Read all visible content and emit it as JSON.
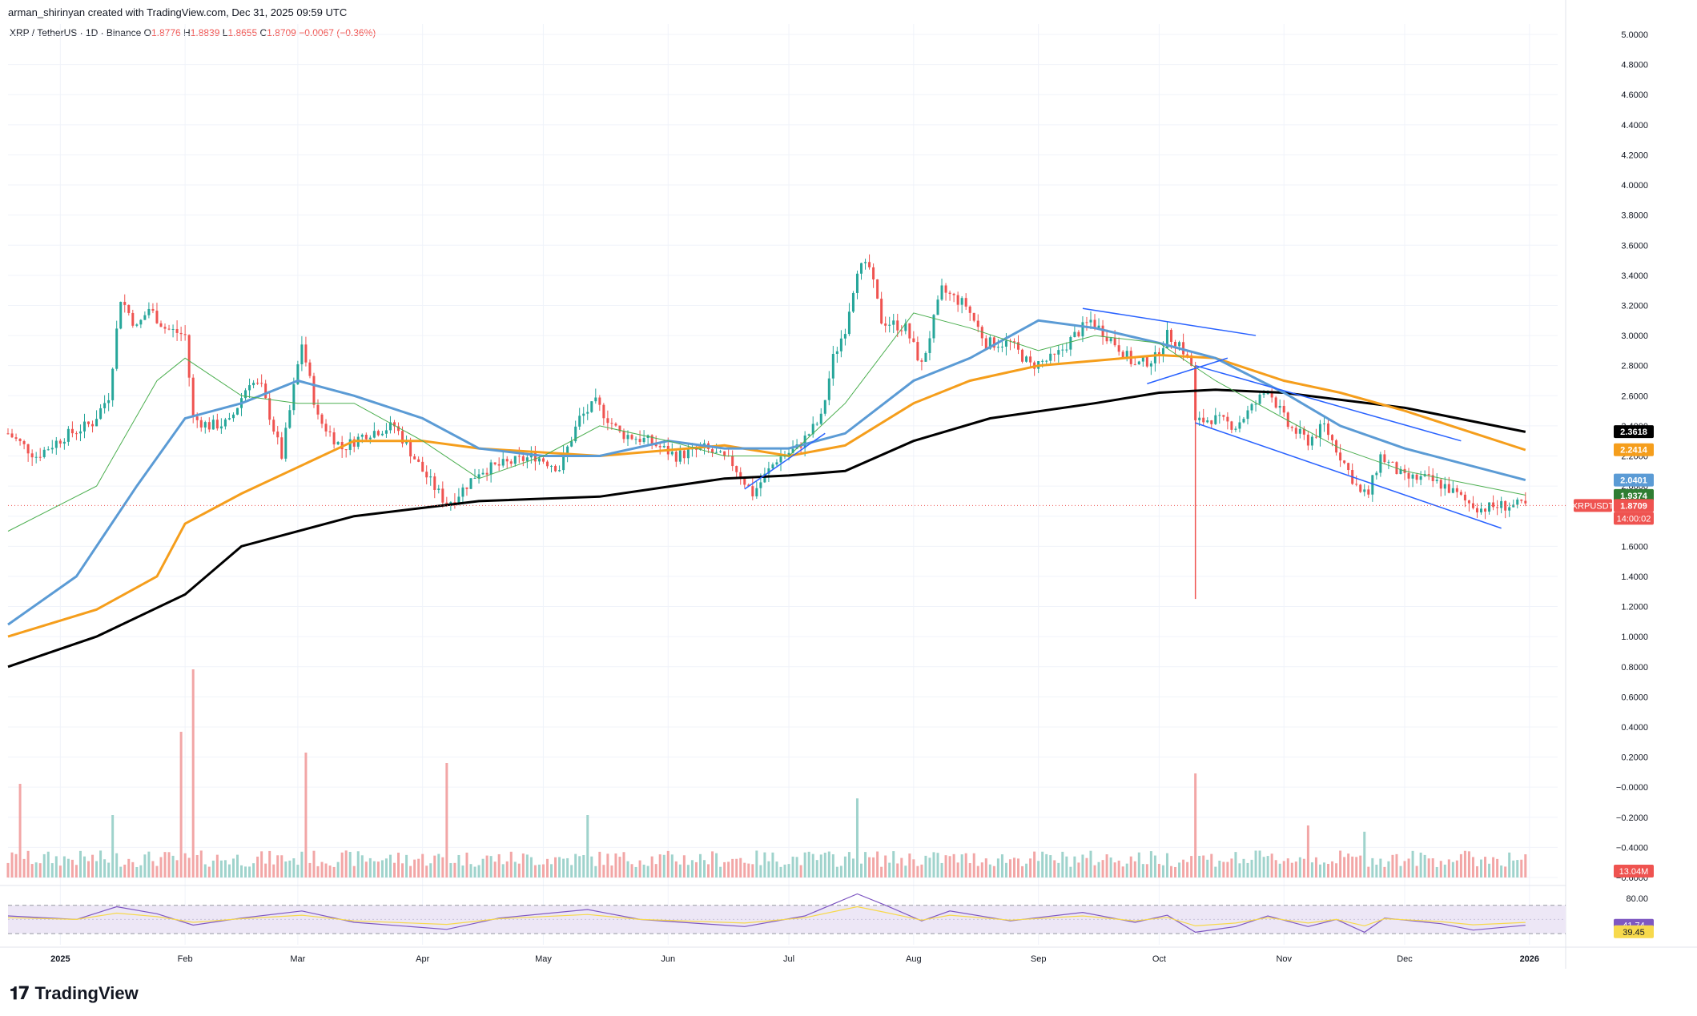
{
  "header": {
    "creator": "arman_shirinyan created with TradingView.com, Dec 31, 2025 09:59 UTC",
    "symbol": "XRP / TetherUS · 1D · Binance",
    "o_label": "O",
    "o_value": "1.8776",
    "h_label": "H",
    "h_value": "1.8839",
    "l_label": "L",
    "l_value": "1.8655",
    "c_label": "C",
    "c_value": "1.8709",
    "change": "−0.0067 (−0.36%)"
  },
  "brand": {
    "name": "TradingView",
    "logo_icon": "tradingview-logo-icon"
  },
  "colors": {
    "up": "#26a69a",
    "down": "#ef5350",
    "ma_black": "#000000",
    "ma_orange": "#f59e1c",
    "ma_blue": "#5b9bd5",
    "ma_green": "#4caf50",
    "channel": "#2962ff",
    "rsi": "#7e57c2",
    "rsi_ma": "#f7d94c",
    "rsi_band": "#ede7f6"
  },
  "chart_data": {
    "type": "candlestick",
    "symbol": "XRPUSDT",
    "price_axis": {
      "ticks": [
        "5.0000",
        "4.8000",
        "4.6000",
        "4.4000",
        "4.2000",
        "4.0000",
        "3.8000",
        "3.6000",
        "3.4000",
        "3.2000",
        "3.0000",
        "2.8000",
        "2.6000",
        "2.4000",
        "2.2000",
        "2.0000",
        "1.8000",
        "1.6000",
        "1.4000",
        "1.2000",
        "1.0000",
        "0.8000",
        "0.6000",
        "0.4000",
        "0.2000",
        "−0.0000",
        "−0.2000",
        "−0.4000",
        "−0.6000"
      ],
      "range": [
        -0.6,
        5.0
      ]
    },
    "time_axis": [
      "2025",
      "Feb",
      "Mar",
      "Apr",
      "May",
      "Jun",
      "Jul",
      "Aug",
      "Sep",
      "Oct",
      "Nov",
      "Dec",
      "2026"
    ],
    "time_range": [
      "2024-12-19",
      "2026-01-08"
    ],
    "last_close": 1.8709,
    "price_line_label": "XRPUSDT",
    "countdown": "14:00:02",
    "price_labels": [
      {
        "text": "2.3618",
        "value": 2.3618,
        "color": "#000000"
      },
      {
        "text": "2.2414",
        "value": 2.2414,
        "color": "#f59e1c"
      },
      {
        "text": "2.0401",
        "value": 2.0401,
        "color": "#5b9bd5"
      },
      {
        "text": "1.9374",
        "value": 1.9374,
        "color": "#2e7d32"
      },
      {
        "text": "1.8709",
        "value": 1.8709,
        "color": "#ef5350"
      }
    ],
    "close_series": [
      [
        "2024-12-19",
        2.35
      ],
      [
        "2024-12-26",
        2.2
      ],
      [
        "2025-01-02",
        2.33
      ],
      [
        "2025-01-09",
        2.42
      ],
      [
        "2025-01-13",
        2.6
      ],
      [
        "2025-01-16",
        3.25
      ],
      [
        "2025-01-20",
        3.05
      ],
      [
        "2025-01-23",
        3.18
      ],
      [
        "2025-01-27",
        3.05
      ],
      [
        "2025-02-01",
        3.0
      ],
      [
        "2025-02-03",
        2.45
      ],
      [
        "2025-02-07",
        2.4
      ],
      [
        "2025-02-12",
        2.42
      ],
      [
        "2025-02-17",
        2.7
      ],
      [
        "2025-02-20",
        2.65
      ],
      [
        "2025-02-25",
        2.2
      ],
      [
        "2025-03-02",
        2.95
      ],
      [
        "2025-03-06",
        2.45
      ],
      [
        "2025-03-12",
        2.25
      ],
      [
        "2025-03-18",
        2.35
      ],
      [
        "2025-03-25",
        2.4
      ],
      [
        "2025-04-01",
        2.1
      ],
      [
        "2025-04-07",
        1.88
      ],
      [
        "2025-04-10",
        1.95
      ],
      [
        "2025-04-15",
        2.1
      ],
      [
        "2025-04-22",
        2.15
      ],
      [
        "2025-04-29",
        2.2
      ],
      [
        "2025-05-05",
        2.12
      ],
      [
        "2025-05-10",
        2.45
      ],
      [
        "2025-05-14",
        2.55
      ],
      [
        "2025-05-20",
        2.35
      ],
      [
        "2025-05-27",
        2.3
      ],
      [
        "2025-06-03",
        2.2
      ],
      [
        "2025-06-10",
        2.25
      ],
      [
        "2025-06-17",
        2.15
      ],
      [
        "2025-06-22",
        1.95
      ],
      [
        "2025-06-28",
        2.18
      ],
      [
        "2025-07-03",
        2.25
      ],
      [
        "2025-07-09",
        2.45
      ],
      [
        "2025-07-12",
        2.85
      ],
      [
        "2025-07-15",
        3.05
      ],
      [
        "2025-07-18",
        3.45
      ],
      [
        "2025-07-21",
        3.45
      ],
      [
        "2025-07-24",
        3.1
      ],
      [
        "2025-07-30",
        3.05
      ],
      [
        "2025-08-03",
        2.8
      ],
      [
        "2025-08-08",
        3.3
      ],
      [
        "2025-08-14",
        3.2
      ],
      [
        "2025-08-19",
        2.95
      ],
      [
        "2025-08-25",
        2.95
      ],
      [
        "2025-08-30",
        2.8
      ],
      [
        "2025-09-05",
        2.85
      ],
      [
        "2025-09-10",
        3.0
      ],
      [
        "2025-09-14",
        3.1
      ],
      [
        "2025-09-20",
        2.95
      ],
      [
        "2025-09-25",
        2.8
      ],
      [
        "2025-09-30",
        2.85
      ],
      [
        "2025-10-03",
        3.0
      ],
      [
        "2025-10-06",
        2.95
      ],
      [
        "2025-10-09",
        2.8
      ],
      [
        "2025-10-10",
        2.42
      ],
      [
        "2025-10-14",
        2.45
      ],
      [
        "2025-10-20",
        2.4
      ],
      [
        "2025-10-25",
        2.55
      ],
      [
        "2025-10-28",
        2.65
      ],
      [
        "2025-11-02",
        2.4
      ],
      [
        "2025-11-07",
        2.3
      ],
      [
        "2025-11-11",
        2.4
      ],
      [
        "2025-11-15",
        2.2
      ],
      [
        "2025-11-20",
        1.95
      ],
      [
        "2025-11-22",
        1.95
      ],
      [
        "2025-11-25",
        2.2
      ],
      [
        "2025-12-01",
        2.05
      ],
      [
        "2025-12-06",
        2.05
      ],
      [
        "2025-12-11",
        2.0
      ],
      [
        "2025-12-16",
        1.9
      ],
      [
        "2025-12-20",
        1.85
      ],
      [
        "2025-12-25",
        1.87
      ],
      [
        "2025-12-31",
        1.8709
      ]
    ],
    "moving_averages": [
      {
        "color": "#000000",
        "last": 2.3618,
        "points": [
          [
            "2024-12-19",
            0.8
          ],
          [
            "2025-01-10",
            1.0
          ],
          [
            "2025-02-01",
            1.28
          ],
          [
            "2025-02-15",
            1.6
          ],
          [
            "2025-03-15",
            1.8
          ],
          [
            "2025-04-15",
            1.9
          ],
          [
            "2025-05-15",
            1.93
          ],
          [
            "2025-06-15",
            2.05
          ],
          [
            "2025-07-01",
            2.07
          ],
          [
            "2025-07-15",
            2.1
          ],
          [
            "2025-08-01",
            2.3
          ],
          [
            "2025-08-20",
            2.45
          ],
          [
            "2025-09-15",
            2.55
          ],
          [
            "2025-10-01",
            2.62
          ],
          [
            "2025-10-15",
            2.64
          ],
          [
            "2025-11-01",
            2.62
          ],
          [
            "2025-12-01",
            2.52
          ],
          [
            "2025-12-31",
            2.36
          ]
        ]
      },
      {
        "color": "#f59e1c",
        "last": 2.2414,
        "points": [
          [
            "2024-12-19",
            1.0
          ],
          [
            "2025-01-10",
            1.18
          ],
          [
            "2025-01-25",
            1.4
          ],
          [
            "2025-02-01",
            1.75
          ],
          [
            "2025-02-15",
            1.95
          ],
          [
            "2025-03-15",
            2.3
          ],
          [
            "2025-04-01",
            2.3
          ],
          [
            "2025-04-15",
            2.25
          ],
          [
            "2025-05-15",
            2.2
          ],
          [
            "2025-06-15",
            2.27
          ],
          [
            "2025-07-01",
            2.2
          ],
          [
            "2025-07-15",
            2.27
          ],
          [
            "2025-08-01",
            2.55
          ],
          [
            "2025-08-15",
            2.7
          ],
          [
            "2025-09-01",
            2.8
          ],
          [
            "2025-10-01",
            2.87
          ],
          [
            "2025-10-15",
            2.85
          ],
          [
            "2025-11-01",
            2.7
          ],
          [
            "2025-11-15",
            2.62
          ],
          [
            "2025-12-01",
            2.5
          ],
          [
            "2025-12-31",
            2.24
          ]
        ]
      },
      {
        "color": "#5b9bd5",
        "last": 2.0401,
        "points": [
          [
            "2024-12-19",
            1.08
          ],
          [
            "2025-01-05",
            1.4
          ],
          [
            "2025-01-20",
            2.0
          ],
          [
            "2025-02-01",
            2.45
          ],
          [
            "2025-02-15",
            2.55
          ],
          [
            "2025-03-01",
            2.7
          ],
          [
            "2025-03-15",
            2.6
          ],
          [
            "2025-04-01",
            2.45
          ],
          [
            "2025-04-15",
            2.25
          ],
          [
            "2025-05-01",
            2.2
          ],
          [
            "2025-05-15",
            2.2
          ],
          [
            "2025-06-01",
            2.3
          ],
          [
            "2025-06-15",
            2.25
          ],
          [
            "2025-07-01",
            2.25
          ],
          [
            "2025-07-15",
            2.35
          ],
          [
            "2025-08-01",
            2.7
          ],
          [
            "2025-08-15",
            2.85
          ],
          [
            "2025-09-01",
            3.1
          ],
          [
            "2025-09-15",
            3.05
          ],
          [
            "2025-10-01",
            2.95
          ],
          [
            "2025-10-15",
            2.85
          ],
          [
            "2025-11-01",
            2.62
          ],
          [
            "2025-11-15",
            2.4
          ],
          [
            "2025-12-01",
            2.25
          ],
          [
            "2025-12-31",
            2.04
          ]
        ]
      },
      {
        "color": "#4caf50",
        "last": 1.9374,
        "points": [
          [
            "2024-12-19",
            1.7
          ],
          [
            "2025-01-10",
            2.0
          ],
          [
            "2025-01-25",
            2.7
          ],
          [
            "2025-02-01",
            2.85
          ],
          [
            "2025-02-15",
            2.6
          ],
          [
            "2025-03-01",
            2.55
          ],
          [
            "2025-03-15",
            2.55
          ],
          [
            "2025-04-01",
            2.3
          ],
          [
            "2025-04-15",
            2.05
          ],
          [
            "2025-05-01",
            2.2
          ],
          [
            "2025-05-15",
            2.4
          ],
          [
            "2025-06-01",
            2.3
          ],
          [
            "2025-06-15",
            2.2
          ],
          [
            "2025-07-01",
            2.2
          ],
          [
            "2025-07-15",
            2.55
          ],
          [
            "2025-08-01",
            3.15
          ],
          [
            "2025-08-15",
            3.05
          ],
          [
            "2025-09-01",
            2.9
          ],
          [
            "2025-09-15",
            3.0
          ],
          [
            "2025-10-01",
            2.95
          ],
          [
            "2025-10-15",
            2.7
          ],
          [
            "2025-11-01",
            2.45
          ],
          [
            "2025-11-15",
            2.25
          ],
          [
            "2025-12-01",
            2.1
          ],
          [
            "2025-12-31",
            1.94
          ]
        ]
      }
    ],
    "trendlines": [
      {
        "from": [
          "2025-09-12",
          3.18
        ],
        "to": [
          "2025-10-25",
          3.0
        ]
      },
      {
        "from": [
          "2025-09-28",
          2.68
        ],
        "to": [
          "2025-10-18",
          2.85
        ]
      },
      {
        "from": [
          "2025-10-10",
          2.42
        ],
        "to": [
          "2025-12-25",
          1.72
        ]
      },
      {
        "from": [
          "2025-10-10",
          2.8
        ],
        "to": [
          "2025-12-15",
          2.3
        ]
      },
      {
        "from": [
          "2025-06-20",
          1.98
        ],
        "to": [
          "2025-07-10",
          2.35
        ]
      }
    ],
    "volume": {
      "last_label": "13.04M",
      "spikes": [
        [
          "2024-12-22",
          0.45
        ],
        [
          "2025-01-14",
          0.3
        ],
        [
          "2025-01-31",
          0.7
        ],
        [
          "2025-02-03",
          1.0
        ],
        [
          "2025-03-03",
          0.6
        ],
        [
          "2025-04-07",
          0.55
        ],
        [
          "2025-05-12",
          0.3
        ],
        [
          "2025-07-18",
          0.38
        ],
        [
          "2025-10-10",
          0.5
        ],
        [
          "2025-11-07",
          0.25
        ],
        [
          "2025-11-21",
          0.22
        ]
      ]
    },
    "rsi": {
      "ticks": [
        "80.00"
      ],
      "range": [
        20,
        90
      ],
      "bands": [
        30,
        70
      ],
      "rsi_label": "41.74",
      "rsi_value": 41.74,
      "ma_label": "39.45",
      "ma_value": 39.45,
      "points": [
        [
          "2024-12-19",
          55
        ],
        [
          "2025-01-05",
          50
        ],
        [
          "2025-01-15",
          68
        ],
        [
          "2025-01-25",
          58
        ],
        [
          "2025-02-03",
          42
        ],
        [
          "2025-02-15",
          52
        ],
        [
          "2025-03-02",
          62
        ],
        [
          "2025-03-15",
          46
        ],
        [
          "2025-04-07",
          36
        ],
        [
          "2025-04-20",
          52
        ],
        [
          "2025-05-12",
          64
        ],
        [
          "2025-05-25",
          50
        ],
        [
          "2025-06-20",
          40
        ],
        [
          "2025-07-05",
          55
        ],
        [
          "2025-07-18",
          86
        ],
        [
          "2025-07-25",
          70
        ],
        [
          "2025-08-03",
          48
        ],
        [
          "2025-08-10",
          62
        ],
        [
          "2025-08-25",
          48
        ],
        [
          "2025-09-12",
          60
        ],
        [
          "2025-09-25",
          46
        ],
        [
          "2025-10-03",
          56
        ],
        [
          "2025-10-10",
          32
        ],
        [
          "2025-10-20",
          40
        ],
        [
          "2025-10-28",
          55
        ],
        [
          "2025-11-07",
          40
        ],
        [
          "2025-11-14",
          50
        ],
        [
          "2025-11-21",
          32
        ],
        [
          "2025-11-26",
          52
        ],
        [
          "2025-12-10",
          44
        ],
        [
          "2025-12-18",
          35
        ],
        [
          "2025-12-31",
          41.74
        ]
      ]
    }
  }
}
